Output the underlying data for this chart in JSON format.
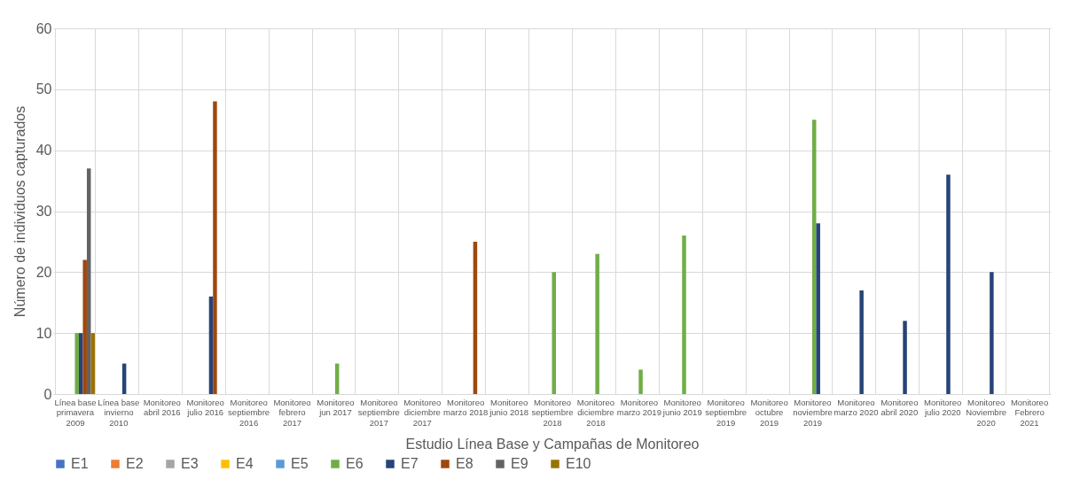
{
  "chart_data": {
    "type": "bar",
    "xlabel": "Estudio Línea Base y Campañas de Monitoreo",
    "ylabel": "Número de individuos capturados",
    "categories": [
      "Línea base primavera 2009",
      "Línea base invierno 2010",
      "Monitoreo abril 2016",
      "Monitoreo julio 2016",
      "Monitoreo septiembre 2016",
      "Monitoreo febrero 2017",
      "Monitoreo jun 2017",
      "Monitoreo septiembre 2017",
      "Monitoreo diciembre 2017",
      "Monitoreo marzo 2018",
      "Monitoreo junio 2018",
      "Monitoreo septiembre 2018",
      "Monitoreo diciembre 2018",
      "Monitoreo marzo 2019",
      "Monitoreo junio 2019",
      "Monitoreo septiembre 2019",
      "Monitoreo octubre 2019",
      "Monitoreo noviembre 2019",
      "Monitoreo marzo 2020",
      "Monitoreo abril 2020",
      "Monitoreo julio 2020",
      "Monitoreo Noviembre 2020",
      "Monitoreo Febrero 2021"
    ],
    "series": [
      {
        "name": "E1",
        "color": "#4472c4",
        "values": [
          null,
          null,
          null,
          null,
          null,
          null,
          null,
          null,
          null,
          null,
          null,
          null,
          null,
          null,
          null,
          null,
          null,
          null,
          null,
          null,
          null,
          null,
          null
        ]
      },
      {
        "name": "E2",
        "color": "#ed7d31",
        "values": [
          null,
          null,
          null,
          null,
          null,
          null,
          null,
          null,
          null,
          null,
          null,
          null,
          null,
          null,
          null,
          null,
          null,
          null,
          null,
          null,
          null,
          null,
          null
        ]
      },
      {
        "name": "E3",
        "color": "#a5a5a5",
        "values": [
          null,
          null,
          null,
          null,
          null,
          null,
          null,
          null,
          null,
          null,
          null,
          null,
          null,
          null,
          null,
          null,
          null,
          null,
          null,
          null,
          null,
          null,
          null
        ]
      },
      {
        "name": "E4",
        "color": "#ffc000",
        "values": [
          null,
          null,
          null,
          null,
          null,
          null,
          null,
          null,
          null,
          null,
          null,
          null,
          null,
          null,
          null,
          null,
          null,
          null,
          null,
          null,
          null,
          null,
          null
        ]
      },
      {
        "name": "E5",
        "color": "#5b9bd5",
        "values": [
          null,
          null,
          null,
          null,
          null,
          null,
          null,
          null,
          null,
          null,
          null,
          null,
          null,
          null,
          null,
          null,
          null,
          null,
          null,
          null,
          null,
          null,
          null
        ]
      },
      {
        "name": "E6",
        "color": "#70ad47",
        "values": [
          10,
          null,
          null,
          null,
          null,
          null,
          5,
          null,
          null,
          null,
          null,
          20,
          23,
          4,
          26,
          null,
          null,
          45,
          null,
          null,
          null,
          null,
          null
        ]
      },
      {
        "name": "E7",
        "color": "#264478",
        "values": [
          10,
          5,
          null,
          16,
          null,
          null,
          null,
          null,
          null,
          null,
          null,
          null,
          null,
          null,
          null,
          null,
          null,
          28,
          17,
          12,
          36,
          20,
          null
        ]
      },
      {
        "name": "E8",
        "color": "#9e480e",
        "values": [
          22,
          null,
          null,
          48,
          null,
          null,
          null,
          null,
          null,
          25,
          null,
          null,
          null,
          null,
          null,
          null,
          null,
          null,
          null,
          null,
          null,
          null,
          null
        ]
      },
      {
        "name": "E9",
        "color": "#636363",
        "values": [
          37,
          null,
          null,
          null,
          null,
          null,
          null,
          null,
          null,
          null,
          null,
          null,
          null,
          null,
          null,
          null,
          null,
          null,
          null,
          null,
          null,
          null,
          null
        ]
      },
      {
        "name": "E10",
        "color": "#997300",
        "values": [
          10,
          null,
          null,
          null,
          null,
          null,
          null,
          null,
          null,
          null,
          null,
          null,
          null,
          null,
          null,
          null,
          null,
          null,
          null,
          null,
          null,
          null,
          null
        ]
      }
    ],
    "ylim": [
      0,
      60
    ],
    "yticks": [
      0,
      10,
      20,
      30,
      40,
      50,
      60
    ],
    "grid": true,
    "legend": "bottom"
  }
}
